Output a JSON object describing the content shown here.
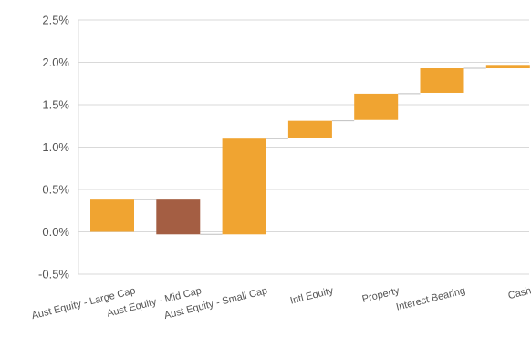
{
  "chart_data": {
    "type": "bar",
    "subtype": "waterfall",
    "title": "",
    "xlabel": "",
    "ylabel": "",
    "ylim": [
      -0.5,
      2.5
    ],
    "y_ticks": [
      2.5,
      2.0,
      1.5,
      1.0,
      0.5,
      0.0,
      -0.5
    ],
    "y_tick_labels": [
      "2.5%",
      "2.0%",
      "1.5%",
      "1.0%",
      "0.5%",
      "0.0%",
      "-0.5%"
    ],
    "grid": true,
    "legend": "none",
    "categories": [
      "Aust Equity - Large Cap",
      "Aust Equity - Mid Cap",
      "Aust Equity - Small Cap",
      "Intl Equity",
      "Property",
      "Interest Bearing",
      "Cash"
    ],
    "values": [
      0.38,
      -0.41,
      1.13,
      0.2,
      0.31,
      0.29,
      0.04
    ],
    "bar_ranges": [
      [
        0.0,
        0.38
      ],
      [
        -0.03,
        0.38
      ],
      [
        -0.03,
        1.1
      ],
      [
        1.11,
        1.31
      ],
      [
        1.32,
        1.63
      ],
      [
        1.64,
        1.93
      ],
      [
        1.93,
        1.97
      ]
    ],
    "colors": {
      "positive": "#F0A431",
      "negative": "#A45E43"
    },
    "bar_colors": [
      "#F0A431",
      "#A45E43",
      "#F0A431",
      "#F0A431",
      "#F0A431",
      "#F0A431",
      "#F0A431"
    ]
  }
}
